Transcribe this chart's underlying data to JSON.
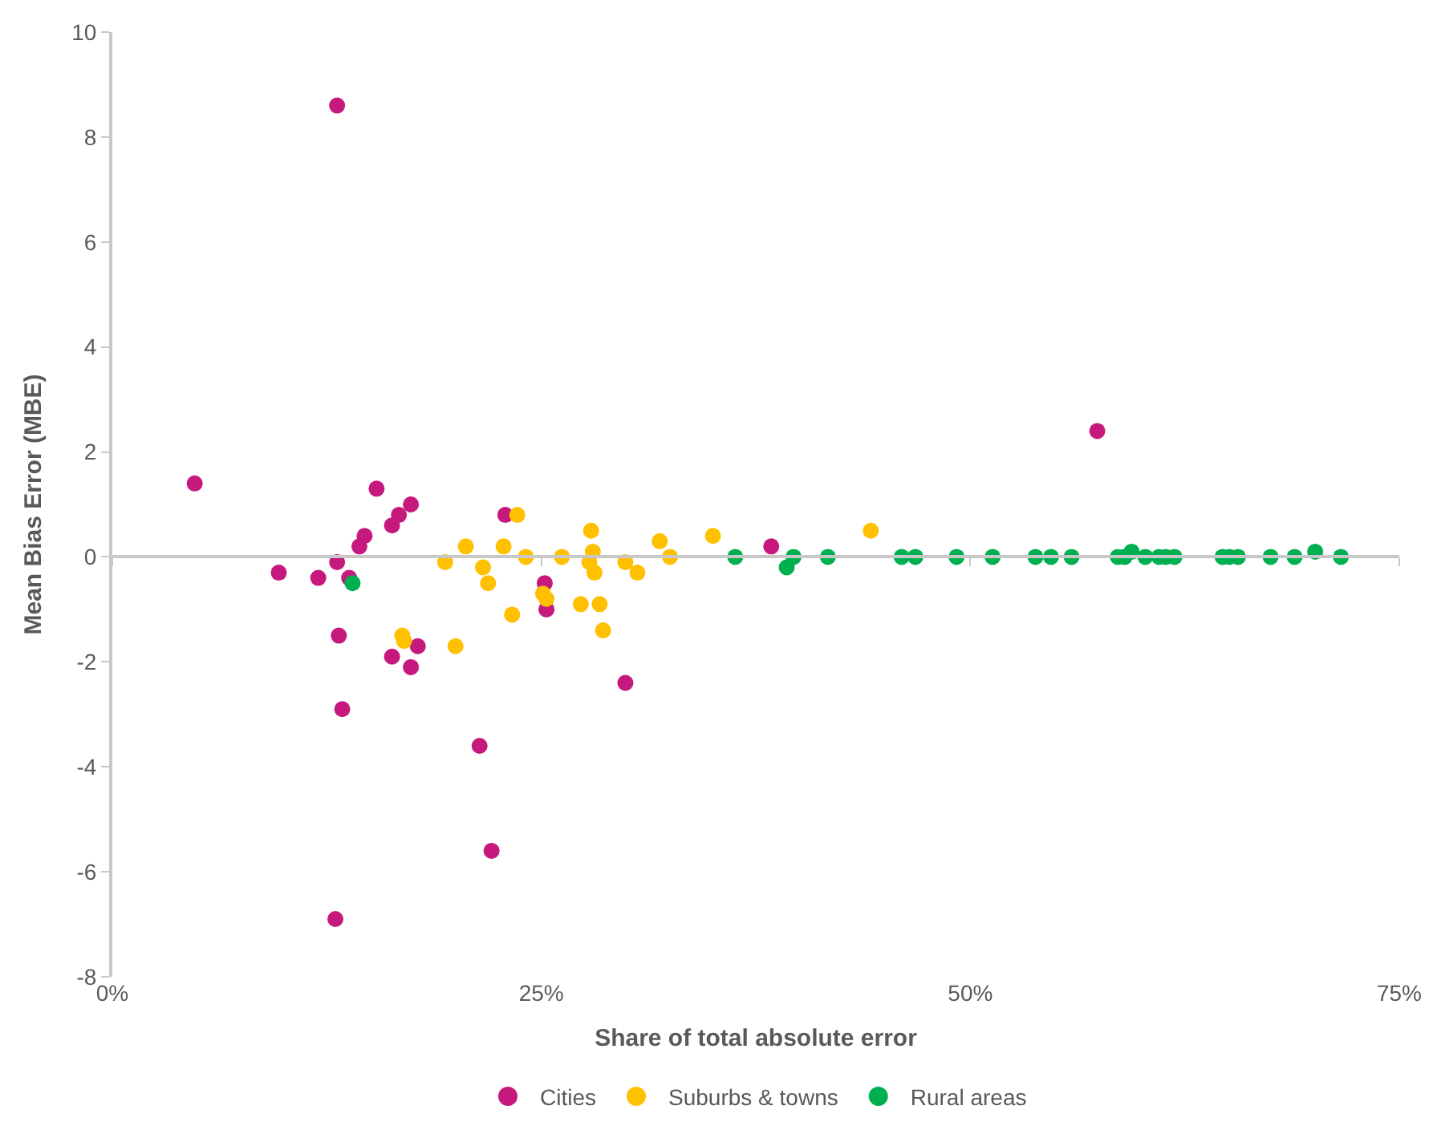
{
  "chart_data": {
    "type": "scatter",
    "xlabel": "Share of total absolute error",
    "ylabel": "Mean Bias Error (MBE)",
    "xlim": [
      0,
      75
    ],
    "xticks": [
      {
        "value": 0,
        "label": "0%"
      },
      {
        "value": 25,
        "label": "25%"
      },
      {
        "value": 50,
        "label": "50%"
      },
      {
        "value": 75,
        "label": "75%"
      }
    ],
    "ylim": [
      -8,
      10
    ],
    "yticks": [
      -8,
      -6,
      -4,
      -2,
      0,
      2,
      4,
      6,
      8,
      10
    ],
    "legend": "bottom",
    "marker": "circle",
    "series": [
      {
        "name": "Cities",
        "color": "#c5197d",
        "x": [
          4.8,
          13.1,
          9.7,
          12.0,
          13.1,
          13.8,
          14.4,
          14.7,
          15.4,
          16.3,
          16.7,
          17.4,
          13.2,
          13.4,
          16.3,
          17.4,
          17.8,
          13.0,
          21.4,
          22.1,
          22.9,
          25.2,
          25.3,
          29.9,
          38.4,
          57.4
        ],
        "values": [
          1.4,
          8.6,
          -0.3,
          -0.4,
          -0.1,
          -0.4,
          0.2,
          0.4,
          1.3,
          0.6,
          0.8,
          1.0,
          -1.5,
          -2.9,
          -1.9,
          -2.1,
          -1.7,
          -6.9,
          -3.6,
          -5.6,
          0.8,
          -0.5,
          -1.0,
          -2.4,
          0.2,
          2.4
        ]
      },
      {
        "name": "Suburbs & towns",
        "color": "#ffc000",
        "x": [
          16.9,
          17.0,
          19.4,
          20.6,
          21.6,
          21.9,
          20.0,
          22.8,
          23.6,
          23.3,
          24.1,
          25.1,
          25.3,
          26.2,
          27.3,
          27.9,
          28.0,
          27.8,
          28.1,
          28.4,
          28.6,
          29.9,
          30.6,
          31.9,
          32.5,
          35.0,
          44.2
        ],
        "values": [
          -1.5,
          -1.6,
          -0.1,
          0.2,
          -0.2,
          -0.5,
          -1.7,
          0.2,
          0.8,
          -1.1,
          0.0,
          -0.7,
          -0.8,
          0.0,
          -0.9,
          0.5,
          0.1,
          -0.1,
          -0.3,
          -0.9,
          -1.4,
          -0.1,
          -0.3,
          0.3,
          0.0,
          0.4,
          0.5
        ]
      },
      {
        "name": "Rural areas",
        "color": "#00b050",
        "x": [
          14.0,
          36.3,
          39.3,
          39.7,
          41.7,
          46.0,
          46.8,
          49.2,
          51.3,
          53.8,
          54.7,
          55.9,
          58.6,
          59.0,
          59.4,
          60.2,
          61.0,
          61.4,
          61.9,
          64.7,
          65.1,
          65.6,
          67.5,
          68.9,
          70.1,
          71.6
        ],
        "values": [
          -0.5,
          0,
          -0.2,
          0,
          0,
          0,
          0,
          0,
          0,
          0,
          0,
          0,
          0,
          0,
          0.1,
          0,
          0,
          0,
          0,
          0,
          0,
          0,
          0,
          0,
          0.1,
          0
        ]
      }
    ]
  }
}
